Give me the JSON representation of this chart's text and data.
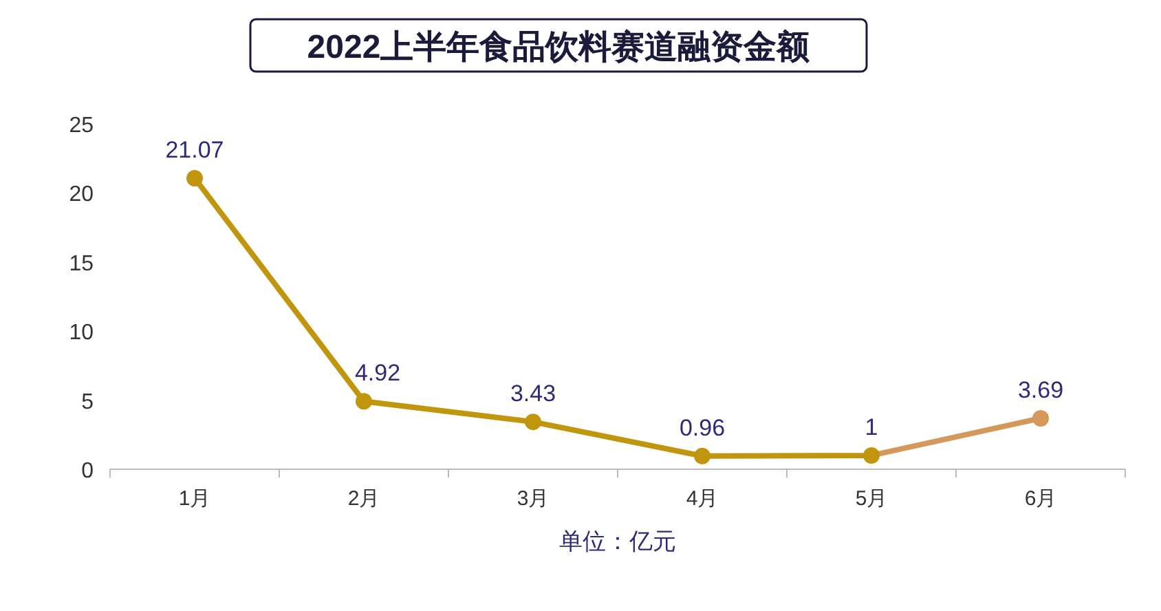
{
  "chart_data": {
    "type": "line",
    "title": "2022上半年食品饮料赛道融资金额",
    "xlabel": "单位：亿元",
    "categories": [
      "1月",
      "2月",
      "3月",
      "4月",
      "5月",
      "6月"
    ],
    "series": [
      {
        "color": "#c0960f",
        "colors": [
          null,
          null,
          null,
          null,
          null,
          "#d4995a"
        ],
        "values": [
          21.07,
          4.92,
          3.43,
          0.96,
          1,
          3.69
        ]
      }
    ],
    "ylim": [
      0,
      25
    ],
    "yticks": [
      0,
      5,
      10,
      15,
      20,
      25
    ],
    "grid": false,
    "marker": "circle",
    "line_style": "solid",
    "data_labels": true
  }
}
